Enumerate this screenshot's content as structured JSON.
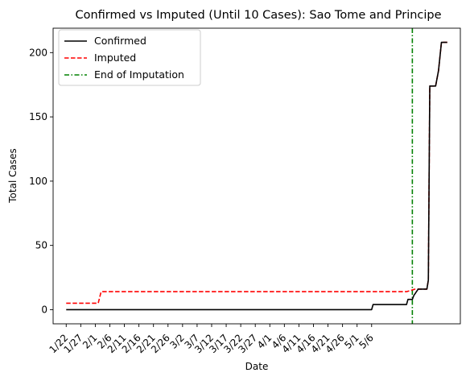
{
  "chart_data": {
    "type": "line",
    "title": "Confirmed vs Imputed (Until 10 Cases): Sao Tome and Principe",
    "xlabel": "Date",
    "ylabel": "Total Cases",
    "x_tick_labels": [
      "1/22",
      "1/27",
      "2/1",
      "2/6",
      "2/11",
      "2/16",
      "2/21",
      "2/26",
      "3/2",
      "3/7",
      "3/12",
      "3/17",
      "3/22",
      "3/27",
      "4/1",
      "4/6",
      "4/11",
      "4/16",
      "4/21",
      "4/26",
      "5/1",
      "5/6"
    ],
    "y_ticks": [
      0,
      50,
      100,
      150,
      200
    ],
    "ylim": [
      -11,
      219
    ],
    "xlim_days": [
      -4,
      112
    ],
    "start_date": "1/22",
    "grid": false,
    "legend_position": "upper-left",
    "series": [
      {
        "name": "Confirmed",
        "color": "#000000",
        "dash": "solid",
        "points": [
          [
            0,
            0
          ],
          [
            105,
            0
          ],
          [
            105.5,
            4
          ],
          [
            117,
            4
          ],
          [
            117.5,
            8
          ],
          [
            119,
            8
          ],
          [
            119.5,
            11
          ],
          [
            121,
            16
          ],
          [
            124,
            16
          ],
          [
            124.5,
            23
          ],
          [
            125,
            174
          ],
          [
            127,
            174
          ],
          [
            128,
            186
          ],
          [
            129,
            208
          ],
          [
            131,
            208
          ]
        ]
      },
      {
        "name": "Imputed",
        "color": "#ff0000",
        "dash": "dashed",
        "points": [
          [
            0,
            5
          ],
          [
            11,
            5
          ],
          [
            12,
            14
          ],
          [
            117,
            14
          ],
          [
            120,
            16
          ],
          [
            124,
            16
          ],
          [
            124.5,
            23
          ],
          [
            125,
            174
          ],
          [
            127,
            174
          ],
          [
            128,
            186
          ],
          [
            129,
            208
          ],
          [
            131,
            208
          ]
        ]
      }
    ],
    "vlines": [
      {
        "name": "End of Imputation",
        "x": 119,
        "color": "#008000",
        "dash": "dashdot"
      }
    ]
  }
}
